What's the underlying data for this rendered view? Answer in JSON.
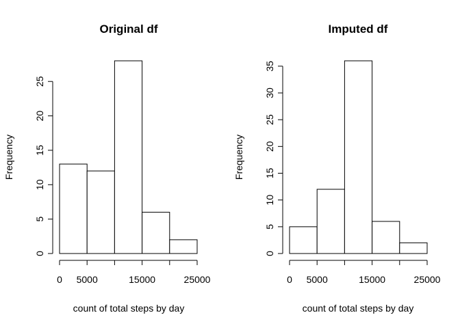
{
  "chart_data": [
    {
      "type": "bar",
      "title": "Original df",
      "xlabel": "count of total steps by day",
      "ylabel": "Frequency",
      "bins": [
        [
          0,
          5000
        ],
        [
          5000,
          10000
        ],
        [
          10000,
          15000
        ],
        [
          15000,
          20000
        ],
        [
          20000,
          25000
        ]
      ],
      "values": [
        13,
        12,
        28,
        6,
        2
      ],
      "xlim": [
        0,
        25000
      ],
      "xticks": [
        0,
        5000,
        10000,
        15000,
        20000,
        25000
      ],
      "xtick_labels": [
        "0",
        "5000",
        "",
        "15000",
        "",
        "25000"
      ],
      "ylim": [
        0,
        28
      ],
      "yticks": [
        0,
        5,
        10,
        15,
        20,
        25
      ],
      "ytick_labels": [
        "0",
        "5",
        "10",
        "15",
        "20",
        "25"
      ],
      "grid": false
    },
    {
      "type": "bar",
      "title": "Imputed df",
      "xlabel": "count of total steps by day",
      "ylabel": "Frequency",
      "bins": [
        [
          0,
          5000
        ],
        [
          5000,
          10000
        ],
        [
          10000,
          15000
        ],
        [
          15000,
          20000
        ],
        [
          20000,
          25000
        ]
      ],
      "values": [
        5,
        12,
        36,
        6,
        2
      ],
      "xlim": [
        0,
        25000
      ],
      "xticks": [
        0,
        5000,
        10000,
        15000,
        20000,
        25000
      ],
      "xtick_labels": [
        "0",
        "5000",
        "",
        "15000",
        "",
        "25000"
      ],
      "ylim": [
        0,
        36
      ],
      "yticks": [
        0,
        5,
        10,
        15,
        20,
        25,
        30,
        35
      ],
      "ytick_labels": [
        "0",
        "5",
        "10",
        "15",
        "20",
        "25",
        "30",
        "35"
      ],
      "grid": false
    }
  ]
}
